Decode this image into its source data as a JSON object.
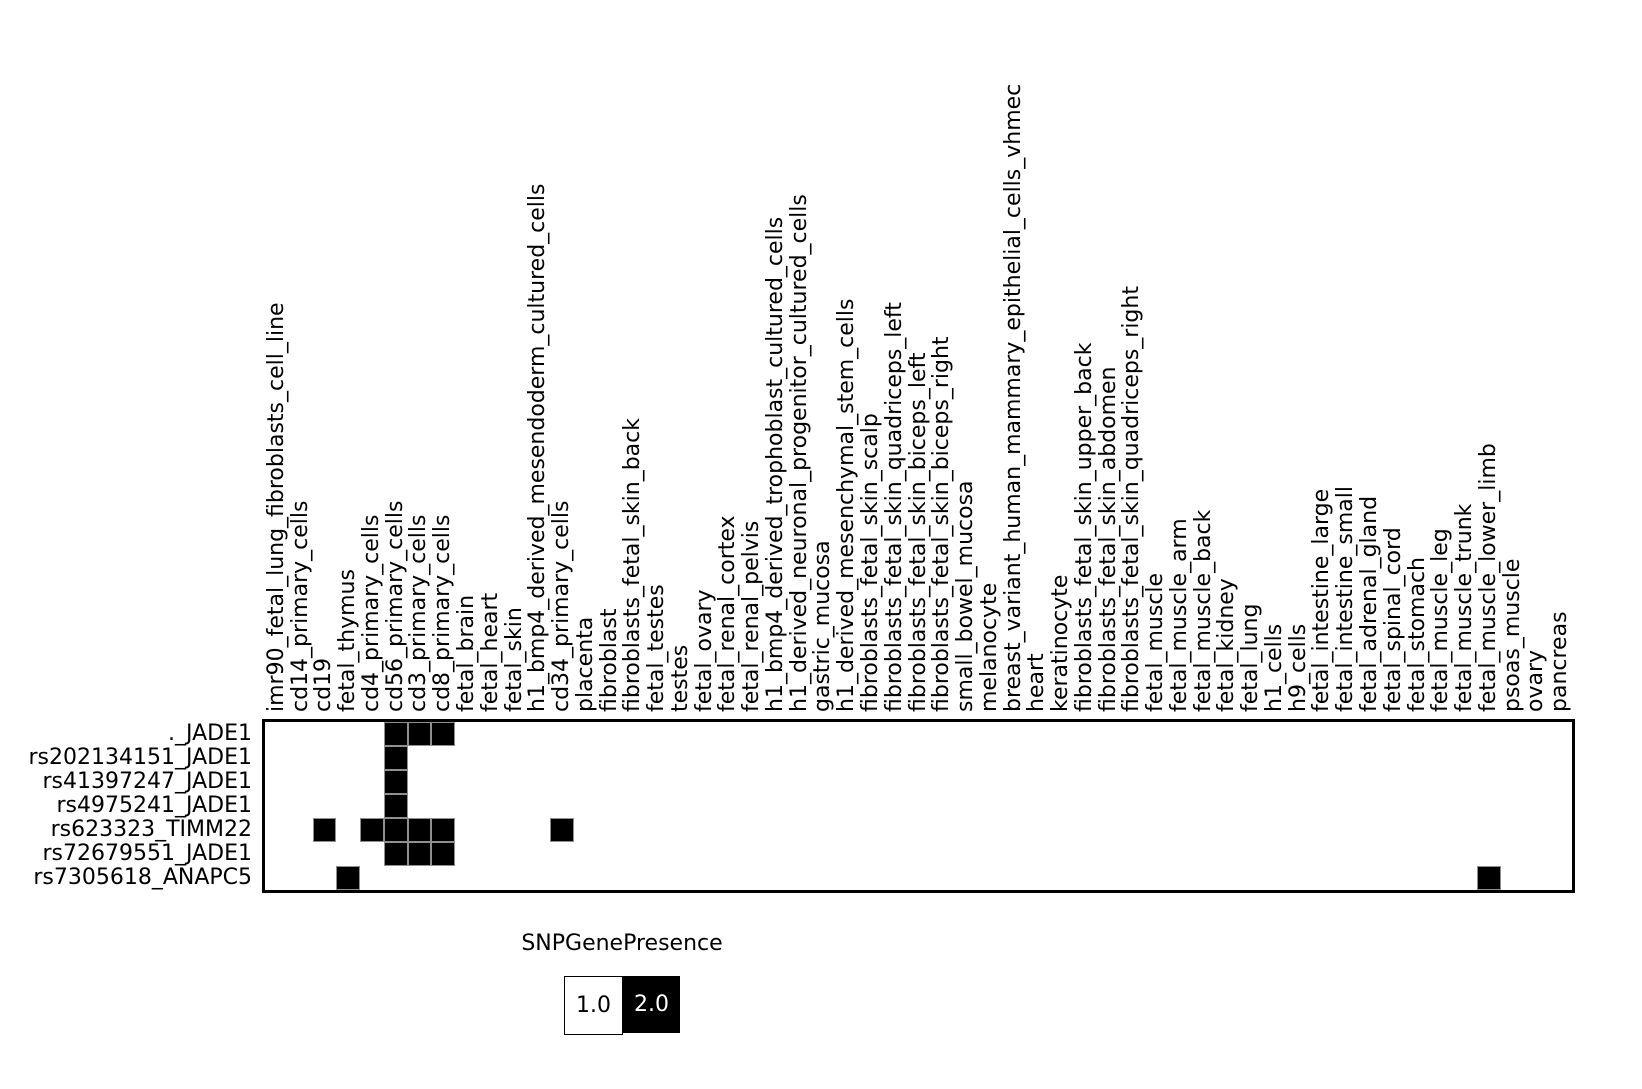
{
  "figure": {
    "background": "#ffffff",
    "text_color": "#000000",
    "fill_color_present": "#000000",
    "fill_color_absent": "#ffffff"
  },
  "chart_data": {
    "type": "heatmap",
    "title": "",
    "legend": {
      "title": "SNPGenePresence",
      "position": "bottom-center",
      "entries": [
        {
          "label": "1.0",
          "color": "#ffffff",
          "text_color": "#000000"
        },
        {
          "label": "2.0",
          "color": "#000000",
          "text_color": "#ffffff"
        }
      ]
    },
    "value_absent": 1.0,
    "value_present": 2.0,
    "rows": [
      "._JADE1",
      "rs202134151_JADE1",
      "rs41397247_JADE1",
      "rs4975241_JADE1",
      "rs623323_TIMM22",
      "rs72679551_JADE1",
      "rs7305618_ANAPC5"
    ],
    "columns": [
      "imr90_fetal_lung_fibroblasts_cell_line",
      "cd14_primary_cells",
      "cd19",
      "fetal_thymus",
      "cd4_primary_cells",
      "cd56_primary_cells",
      "cd3_primary_cells",
      "cd8_primary_cells",
      "fetal_brain",
      "fetal_heart",
      "fetal_skin",
      "h1_bmp4_derived_mesendoderm_cultured_cells",
      "cd34_primary_cells",
      "placenta",
      "fibroblast",
      "fibroblasts_fetal_skin_back",
      "fetal_testes",
      "testes",
      "fetal_ovary",
      "fetal_renal_cortex",
      "fetal_renal_pelvis",
      "h1_bmp4_derived_trophoblast_cultured_cells",
      "h1_derived_neuronal_progenitor_cultured_cells",
      "gastric_mucosa",
      "h1_derived_mesenchymal_stem_cells",
      "fibroblasts_fetal_skin_scalp",
      "fibroblasts_fetal_skin_quadriceps_left",
      "fibroblasts_fetal_skin_biceps_left",
      "fibroblasts_fetal_skin_biceps_right",
      "small_bowel_mucosa",
      "melanocyte",
      "breast_variant_human_mammary_epithelial_cells_vhmec",
      "heart",
      "keratinocyte",
      "fibroblasts_fetal_skin_upper_back",
      "fibroblasts_fetal_skin_abdomen",
      "fibroblasts_fetal_skin_quadriceps_right",
      "fetal_muscle",
      "fetal_muscle_arm",
      "fetal_muscle_back",
      "fetal_kidney",
      "fetal_lung",
      "h1_cells",
      "h9_cells",
      "fetal_intestine_large",
      "fetal_intestine_small",
      "fetal_adrenal_gland",
      "fetal_spinal_cord",
      "fetal_stomach",
      "fetal_muscle_leg",
      "fetal_muscle_trunk",
      "fetal_muscle_lower_limb",
      "psoas_muscle",
      "ovary",
      "pancreas"
    ],
    "present_cells": [
      {
        "row": "._JADE1",
        "columns": [
          "cd56_primary_cells",
          "cd3_primary_cells",
          "cd8_primary_cells"
        ]
      },
      {
        "row": "rs202134151_JADE1",
        "columns": [
          "cd56_primary_cells"
        ]
      },
      {
        "row": "rs41397247_JADE1",
        "columns": [
          "cd56_primary_cells"
        ]
      },
      {
        "row": "rs4975241_JADE1",
        "columns": [
          "cd56_primary_cells"
        ]
      },
      {
        "row": "rs623323_TIMM22",
        "columns": [
          "cd19",
          "cd4_primary_cells",
          "cd56_primary_cells",
          "cd3_primary_cells",
          "cd8_primary_cells",
          "cd34_primary_cells"
        ]
      },
      {
        "row": "rs72679551_JADE1",
        "columns": [
          "cd56_primary_cells",
          "cd3_primary_cells",
          "cd8_primary_cells"
        ]
      },
      {
        "row": "rs7305618_ANAPC5",
        "columns": [
          "fetal_thymus",
          "fetal_muscle_lower_limb"
        ]
      }
    ]
  }
}
